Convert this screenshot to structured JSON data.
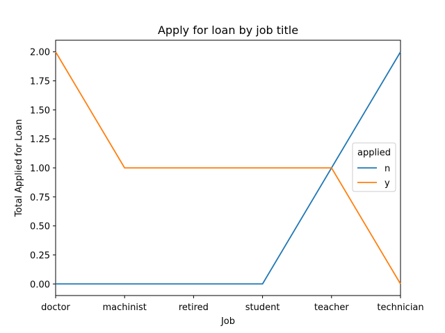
{
  "chart_data": {
    "type": "line",
    "title": "Apply for loan by job title",
    "xlabel": "Job",
    "ylabel": "Total Applied for Loan",
    "categories": [
      "doctor",
      "machinist",
      "retired",
      "student",
      "teacher",
      "technician"
    ],
    "series": [
      {
        "name": "n",
        "values": [
          0,
          0,
          0,
          0,
          1,
          2
        ],
        "color": "#1f77b4"
      },
      {
        "name": "y",
        "values": [
          2,
          1,
          1,
          1,
          1,
          0
        ],
        "color": "#ff7f0e"
      }
    ],
    "ylim": [
      -0.1,
      2.1
    ],
    "yticks": [
      "0.00",
      "0.25",
      "0.50",
      "0.75",
      "1.00",
      "1.25",
      "1.50",
      "1.75",
      "2.00"
    ],
    "grid": false,
    "legend": {
      "title": "applied",
      "placement": "center-right"
    }
  }
}
